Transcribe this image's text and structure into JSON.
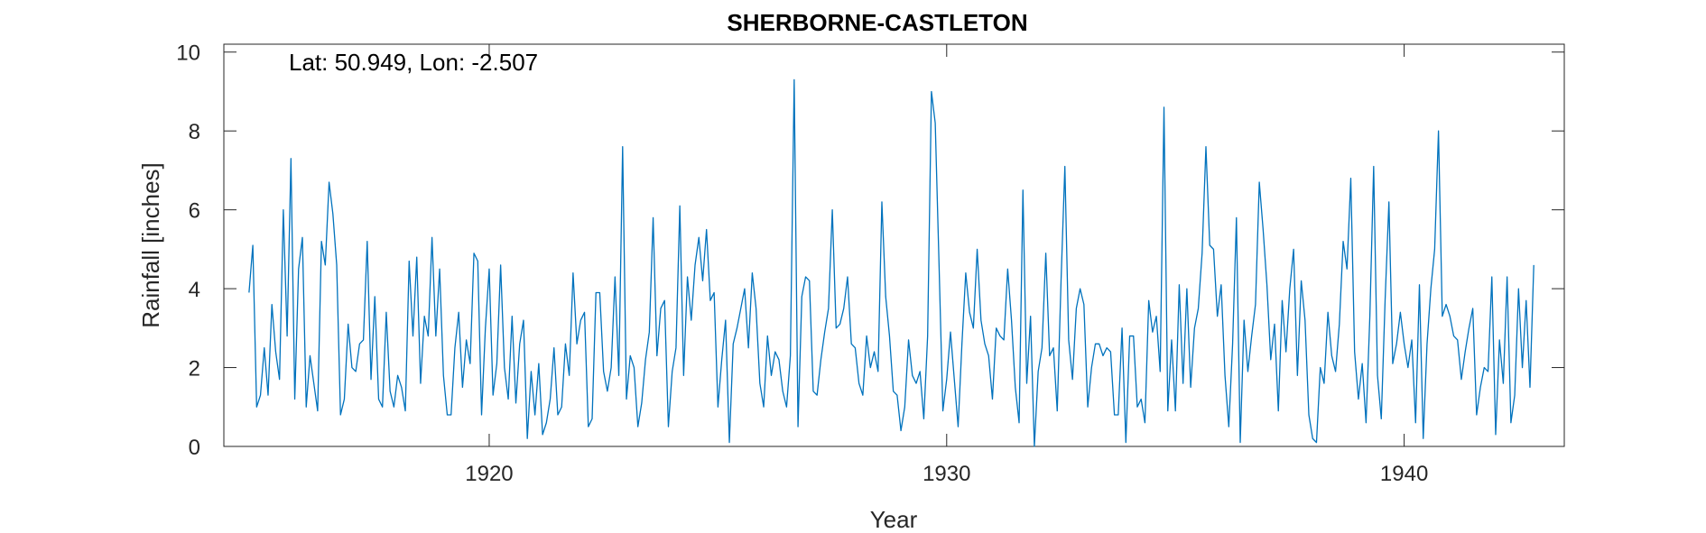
{
  "chart_data": {
    "type": "line",
    "title": "SHERBORNE-CASTLETON",
    "xlabel": "Year",
    "ylabel": "Rainfall [inches]",
    "annotation": "Lat: 50.949, Lon: -2.507",
    "xlim": [
      1914.2,
      1943.5
    ],
    "ylim": [
      0,
      10.2
    ],
    "xticks": [
      1920,
      1930,
      1940
    ],
    "yticks": [
      0,
      2,
      4,
      6,
      8,
      10
    ],
    "grid": false,
    "line_color": "#0072BD",
    "x_start": 1914.75,
    "x_step_months": 1,
    "series": [
      {
        "values": [
          3.9,
          5.1,
          1.0,
          1.3,
          2.5,
          1.3,
          3.6,
          2.4,
          1.7,
          6.0,
          2.8,
          7.3,
          1.2,
          4.5,
          5.3,
          1.0,
          2.3,
          1.6,
          0.9,
          5.2,
          4.6,
          6.7,
          5.9,
          4.6,
          0.8,
          1.2,
          3.1,
          2.0,
          1.9,
          2.6,
          2.7,
          5.2,
          1.7,
          3.8,
          1.2,
          1.0,
          3.4,
          1.4,
          1.0,
          1.8,
          1.5,
          0.9,
          4.7,
          2.8,
          4.8,
          1.6,
          3.3,
          2.8,
          5.3,
          2.8,
          4.5,
          1.8,
          0.8,
          0.8,
          2.5,
          3.4,
          1.5,
          2.7,
          2.1,
          4.9,
          4.7,
          0.8,
          3.0,
          4.5,
          1.3,
          2.1,
          4.6,
          2.0,
          1.2,
          3.3,
          1.1,
          2.6,
          3.2,
          0.2,
          1.9,
          0.8,
          2.1,
          0.3,
          0.6,
          1.2,
          2.5,
          0.8,
          1.0,
          2.6,
          1.8,
          4.4,
          2.6,
          3.2,
          3.4,
          0.5,
          0.7,
          3.9,
          3.9,
          1.9,
          1.4,
          2.0,
          4.3,
          1.8,
          7.6,
          1.2,
          2.3,
          2.0,
          0.5,
          1.1,
          2.2,
          2.9,
          5.8,
          2.3,
          3.5,
          3.7,
          0.5,
          1.9,
          2.5,
          6.1,
          1.8,
          4.3,
          3.2,
          4.6,
          5.3,
          4.2,
          5.5,
          3.7,
          3.9,
          1.0,
          2.2,
          3.2,
          0.1,
          2.6,
          3.0,
          3.5,
          4.0,
          2.5,
          4.4,
          3.5,
          1.6,
          1.0,
          2.8,
          1.8,
          2.4,
          2.2,
          1.4,
          1.0,
          2.3,
          9.3,
          0.5,
          3.8,
          4.3,
          4.2,
          1.4,
          1.3,
          2.2,
          2.9,
          3.5,
          6.0,
          3.0,
          3.1,
          3.5,
          4.3,
          2.6,
          2.5,
          1.6,
          1.3,
          2.8,
          2.0,
          2.4,
          1.9,
          6.2,
          3.8,
          2.8,
          1.4,
          1.3,
          0.4,
          1.0,
          2.7,
          1.8,
          1.6,
          1.9,
          0.7,
          2.8,
          9.0,
          8.2,
          4.6,
          0.9,
          1.7,
          2.9,
          1.7,
          0.5,
          2.6,
          4.4,
          3.4,
          3.0,
          5.0,
          3.2,
          2.6,
          2.3,
          1.2,
          3.0,
          2.8,
          2.7,
          4.5,
          3.2,
          1.5,
          0.6,
          6.5,
          1.6,
          3.3,
          0.0,
          1.9,
          2.5,
          4.9,
          2.3,
          2.5,
          0.9,
          4.2,
          7.1,
          2.7,
          1.7,
          3.5,
          4.0,
          3.6,
          1.0,
          2.0,
          2.6,
          2.6,
          2.3,
          2.5,
          2.4,
          0.8,
          0.8,
          3.0,
          0.1,
          2.8,
          2.8,
          1.0,
          1.2,
          0.6,
          3.7,
          2.9,
          3.3,
          1.9,
          8.6,
          0.9,
          2.7,
          0.9,
          4.1,
          1.6,
          4.0,
          1.5,
          3.0,
          3.5,
          4.9,
          7.6,
          5.1,
          5.0,
          3.3,
          4.1,
          1.8,
          0.5,
          2.6,
          5.8,
          0.1,
          3.2,
          1.9,
          2.8,
          3.6,
          6.7,
          5.5,
          4.1,
          2.2,
          3.1,
          0.9,
          3.7,
          2.4,
          4.0,
          5.0,
          1.8,
          4.2,
          3.2,
          0.8,
          0.2,
          0.1,
          2.0,
          1.6,
          3.4,
          2.3,
          1.9,
          3.1,
          5.2,
          4.5,
          6.8,
          2.4,
          1.2,
          2.1,
          0.6,
          3.3,
          7.1,
          1.8,
          0.7,
          3.7,
          6.2,
          2.1,
          2.6,
          3.4,
          2.6,
          2.0,
          2.7,
          0.6,
          4.1,
          0.2,
          2.6,
          4.0,
          5.0,
          8.0,
          3.3,
          3.6,
          3.3,
          2.8,
          2.7,
          1.7,
          2.4,
          3.0,
          3.5,
          0.8,
          1.5,
          2.0,
          1.9,
          4.3,
          0.3,
          2.7,
          1.6,
          4.3,
          0.6,
          1.3,
          4.0,
          2.0,
          3.7,
          1.5,
          4.6
        ]
      }
    ]
  }
}
